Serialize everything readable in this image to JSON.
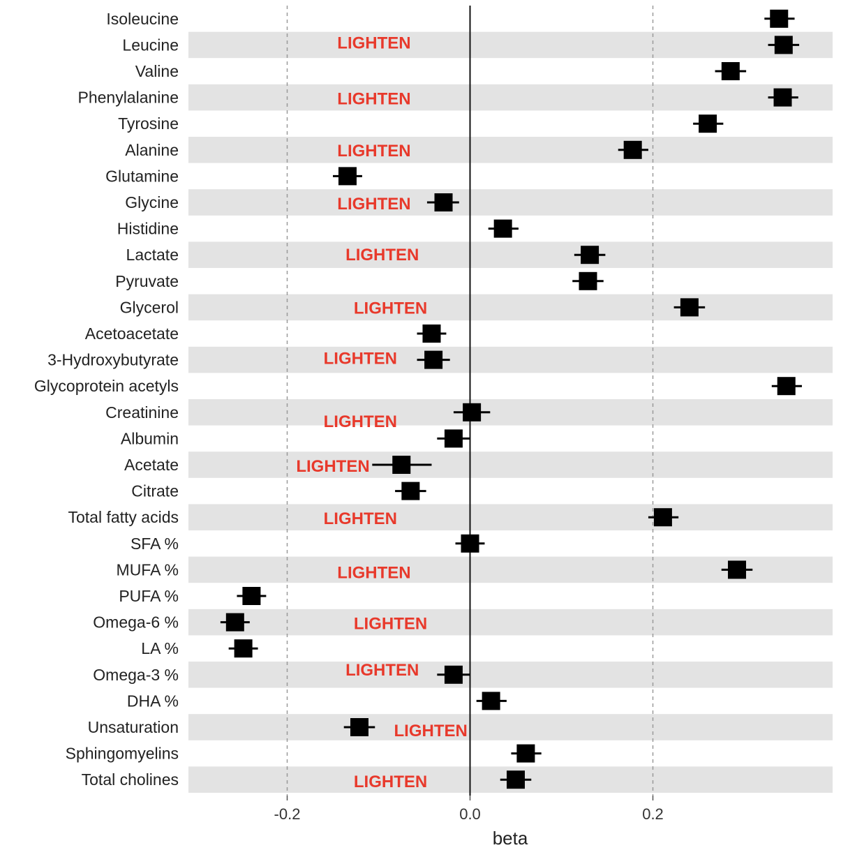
{
  "chart_data": {
    "type": "forest",
    "xlabel": "beta",
    "xlim": [
      -0.31,
      0.39
    ],
    "xticks": [
      -0.2,
      0.0,
      0.2
    ],
    "xtick_labels": [
      "-0.2",
      "0.0",
      "0.2"
    ],
    "grid": "vertical dashed at ±0.2, solid reference line at 0",
    "striped_rows": true,
    "marker_color": "#000000",
    "stripe_color": "#e3e3e3",
    "annotation_color": "#e8392b",
    "categories": [
      "Isoleucine",
      "Leucine",
      "Valine",
      "Phenylalanine",
      "Tyrosine",
      "Alanine",
      "Glutamine",
      "Glycine",
      "Histidine",
      "Lactate",
      "Pyruvate",
      "Glycerol",
      "Acetoacetate",
      "3-Hydroxybutyrate",
      "Glycoprotein acetyls",
      "Creatinine",
      "Albumin",
      "Acetate",
      "Citrate",
      "Total fatty acids",
      "SFA %",
      "MUFA %",
      "PUFA %",
      "Omega-6 %",
      "LA %",
      "Omega-3 %",
      "DHA %",
      "Unsaturation",
      "Sphingomyelins",
      "Total cholines"
    ],
    "values": [
      0.338,
      0.343,
      0.285,
      0.342,
      0.26,
      0.178,
      -0.134,
      -0.029,
      0.036,
      0.131,
      0.129,
      0.24,
      -0.042,
      -0.04,
      0.346,
      0.002,
      -0.018,
      -0.075,
      -0.065,
      0.211,
      0.0,
      0.292,
      -0.239,
      -0.257,
      -0.248,
      -0.018,
      0.023,
      -0.121,
      0.061,
      0.05
    ],
    "ci_low": [
      0.322,
      0.326,
      0.268,
      0.326,
      0.244,
      0.162,
      -0.15,
      -0.047,
      0.02,
      0.114,
      0.112,
      0.223,
      -0.058,
      -0.058,
      0.33,
      -0.018,
      -0.036,
      -0.107,
      -0.082,
      0.195,
      -0.016,
      0.275,
      -0.255,
      -0.273,
      -0.264,
      -0.036,
      0.007,
      -0.138,
      0.045,
      0.033
    ],
    "ci_high": [
      0.355,
      0.36,
      0.302,
      0.359,
      0.277,
      0.195,
      -0.118,
      -0.012,
      0.053,
      0.148,
      0.146,
      0.257,
      -0.026,
      -0.022,
      0.363,
      0.022,
      0.0,
      -0.042,
      -0.048,
      0.228,
      0.016,
      0.309,
      -0.223,
      -0.241,
      -0.232,
      0.0,
      0.04,
      -0.104,
      0.078,
      0.067
    ],
    "annotations": [
      {
        "text": "LIGHTEN",
        "row": 1,
        "x": -0.105,
        "dy": -3
      },
      {
        "text": "LIGHTEN",
        "row": 3,
        "x": -0.105,
        "dy": 2
      },
      {
        "text": "LIGHTEN",
        "row": 5,
        "x": -0.105,
        "dy": 1
      },
      {
        "text": "LIGHTEN",
        "row": 7,
        "x": -0.105,
        "dy": 2
      },
      {
        "text": "LIGHTEN",
        "row": 9,
        "x": -0.096,
        "dy": 0
      },
      {
        "text": "LIGHTEN",
        "row": 11,
        "x": -0.087,
        "dy": 1
      },
      {
        "text": "LIGHTEN",
        "row": 13,
        "x": -0.12,
        "dy": -2
      },
      {
        "text": "LIGHTEN",
        "row": 15,
        "x": -0.12,
        "dy": 13
      },
      {
        "text": "LIGHTEN",
        "row": 17,
        "x": -0.15,
        "dy": 2
      },
      {
        "text": "LIGHTEN",
        "row": 19,
        "x": -0.12,
        "dy": 2
      },
      {
        "text": "LIGHTEN",
        "row": 21,
        "x": -0.105,
        "dy": 4
      },
      {
        "text": "LIGHTEN",
        "row": 23,
        "x": -0.087,
        "dy": 2
      },
      {
        "text": "LIGHTEN",
        "row": 25,
        "x": -0.096,
        "dy": -7
      },
      {
        "text": "LIGHTEN",
        "row": 27,
        "x": -0.043,
        "dy": 5
      },
      {
        "text": "LIGHTEN",
        "row": 29,
        "x": -0.087,
        "dy": 3
      }
    ]
  }
}
